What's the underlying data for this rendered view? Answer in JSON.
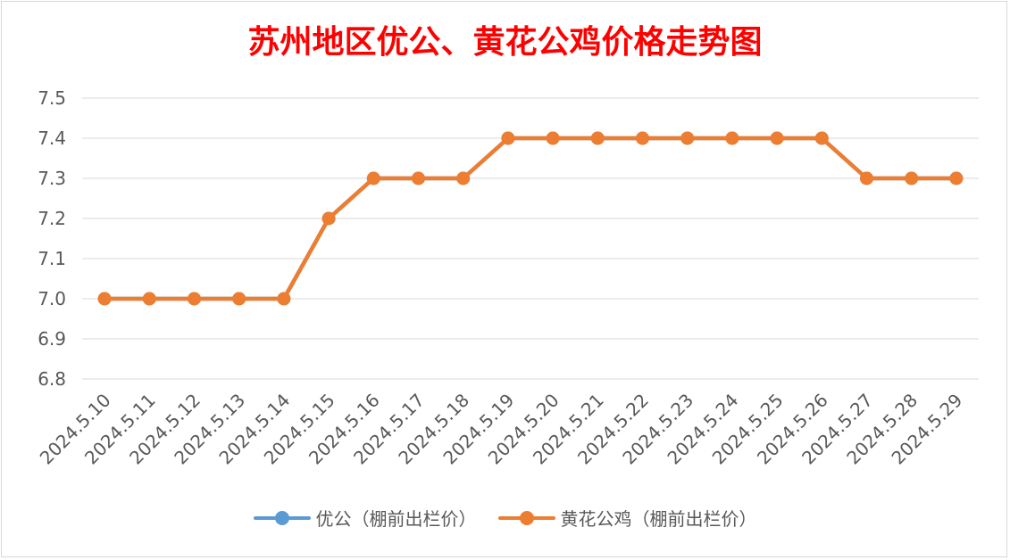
{
  "chart_data": {
    "type": "line",
    "title": "苏州地区优公、黄花公鸡价格走势图",
    "categories": [
      "2024.5.10",
      "2024.5.11",
      "2024.5.12",
      "2024.5.13",
      "2024.5.14",
      "2024.5.15",
      "2024.5.16",
      "2024.5.17",
      "2024.5.18",
      "2024.5.19",
      "2024.5.20",
      "2024.5.21",
      "2024.5.22",
      "2024.5.23",
      "2024.5.24",
      "2024.5.25",
      "2024.5.26",
      "2024.5.27",
      "2024.5.28",
      "2024.5.29"
    ],
    "yticks": [
      "6.8",
      "6.9",
      "7.0",
      "7.1",
      "7.2",
      "7.3",
      "7.4",
      "7.5"
    ],
    "ylim": [
      6.8,
      7.5
    ],
    "grid": true,
    "legend_position": "bottom",
    "series": [
      {
        "name": "优公（棚前出栏价）",
        "color": "#5b9bd5",
        "values": [
          7.0,
          7.0,
          7.0,
          7.0,
          7.0,
          7.2,
          7.3,
          7.3,
          7.3,
          7.4,
          7.4,
          7.4,
          7.4,
          7.4,
          7.4,
          7.4,
          7.4,
          7.3,
          7.3,
          7.3
        ]
      },
      {
        "name": "黄花公鸡（棚前出栏价）",
        "color": "#ed7d31",
        "values": [
          7.0,
          7.0,
          7.0,
          7.0,
          7.0,
          7.2,
          7.3,
          7.3,
          7.3,
          7.4,
          7.4,
          7.4,
          7.4,
          7.4,
          7.4,
          7.4,
          7.4,
          7.3,
          7.3,
          7.3
        ]
      }
    ]
  }
}
